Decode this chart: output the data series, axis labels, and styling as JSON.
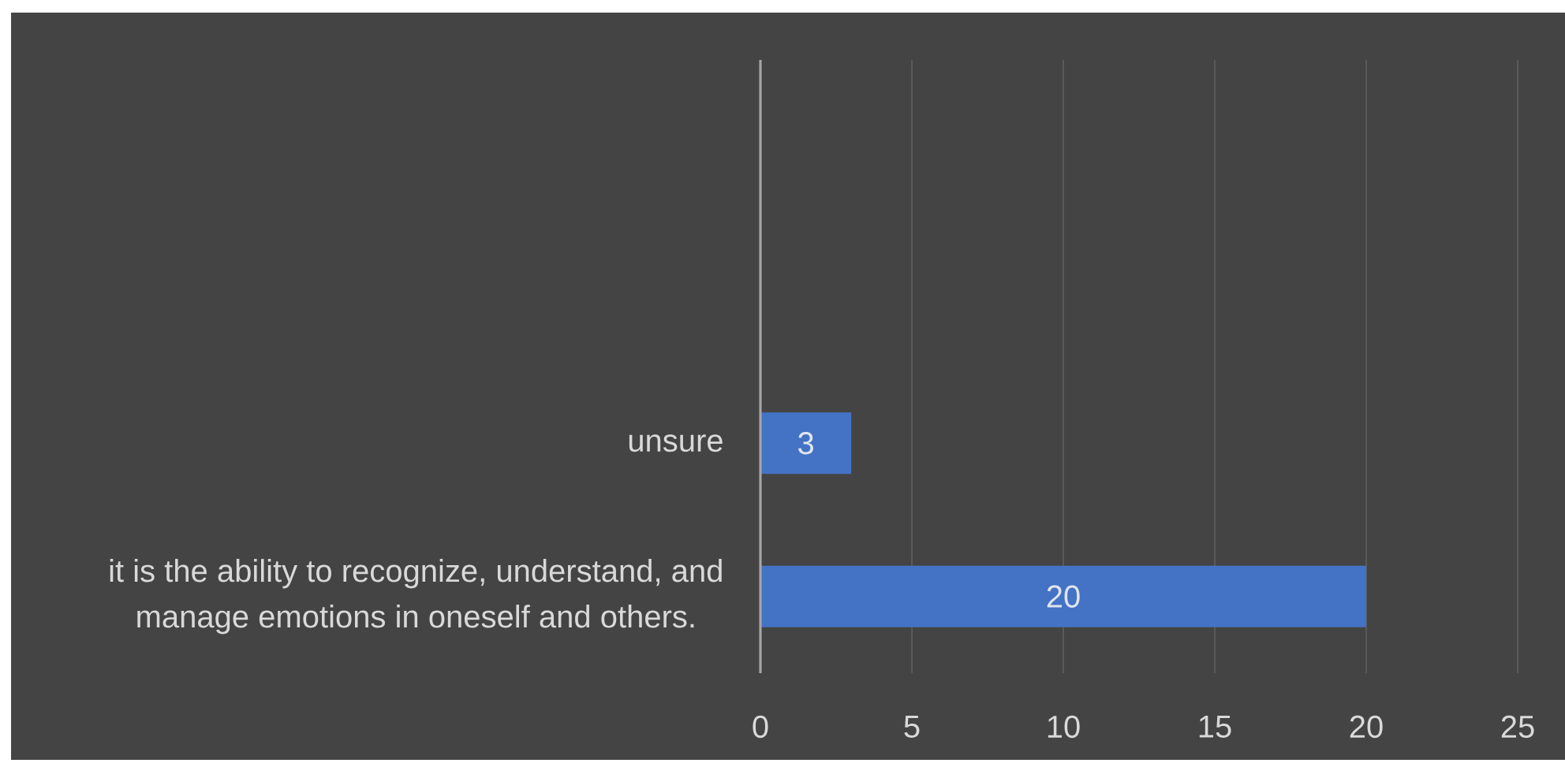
{
  "chart_data": {
    "type": "bar",
    "orientation": "horizontal",
    "categories": [
      null,
      null,
      "unsure",
      "it is the ability to recognize, understand, and manage emotions in oneself and others."
    ],
    "values": [
      null,
      null,
      3,
      20
    ],
    "color": "#4472c4",
    "xlim": [
      0,
      25
    ],
    "xticks": [
      0,
      5,
      10,
      15,
      20,
      25
    ],
    "grid": "x",
    "data_labels": true
  }
}
